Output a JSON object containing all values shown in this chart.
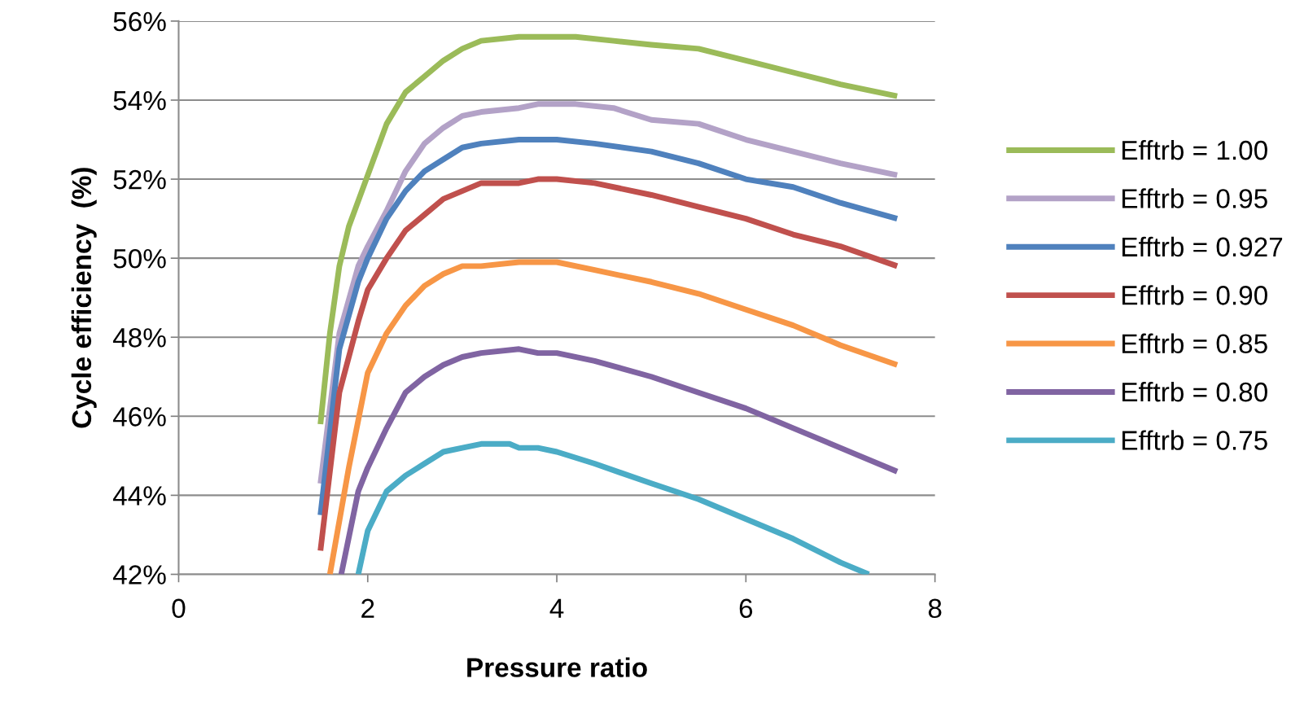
{
  "chart_data": {
    "type": "line",
    "xlabel": "Pressure ratio",
    "ylabel": "Cycle efficiency  (%)",
    "xlim": [
      0,
      8
    ],
    "xticks": [
      0,
      2,
      4,
      6,
      8
    ],
    "ylim": [
      42,
      56
    ],
    "yticks": [
      {
        "value": 42,
        "label": "42%"
      },
      {
        "value": 44,
        "label": "44%"
      },
      {
        "value": 46,
        "label": "46%"
      },
      {
        "value": 48,
        "label": "48%"
      },
      {
        "value": 50,
        "label": "50%"
      },
      {
        "value": 52,
        "label": "52%"
      },
      {
        "value": 54,
        "label": "54%"
      },
      {
        "value": 56,
        "label": "56%"
      }
    ],
    "grid": "y",
    "legend": "right",
    "marker": "none",
    "line_style": "solid",
    "series": [
      {
        "name": "Efftrb = 1.00",
        "color": "#9bbb59",
        "x": [
          1.5,
          1.6,
          1.7,
          1.8,
          2.0,
          2.2,
          2.4,
          2.6,
          2.8,
          3.0,
          3.2,
          3.6,
          3.8,
          4.2,
          4.6,
          5.0,
          5.5,
          6.0,
          6.5,
          7.0,
          7.6
        ],
        "values": [
          45.8,
          48.1,
          49.8,
          50.8,
          52.1,
          53.4,
          54.2,
          54.6,
          55.0,
          55.3,
          55.5,
          55.6,
          55.6,
          55.6,
          55.5,
          55.4,
          55.3,
          55.0,
          54.7,
          54.4,
          54.1
        ]
      },
      {
        "name": "Efftrb = 0.95",
        "color": "#b3a2c7",
        "x": [
          1.5,
          1.7,
          1.9,
          2.0,
          2.2,
          2.4,
          2.6,
          2.8,
          3.0,
          3.2,
          3.6,
          3.8,
          4.2,
          4.6,
          5.0,
          5.5,
          6.0,
          6.5,
          7.0,
          7.6
        ],
        "values": [
          44.3,
          48.1,
          49.8,
          50.3,
          51.2,
          52.2,
          52.9,
          53.3,
          53.6,
          53.7,
          53.8,
          53.9,
          53.9,
          53.8,
          53.5,
          53.4,
          53.0,
          52.7,
          52.4,
          52.1
        ]
      },
      {
        "name": "Efftrb = 0.927",
        "color": "#4f81bd",
        "x": [
          1.5,
          1.7,
          1.9,
          2.0,
          2.2,
          2.4,
          2.6,
          2.8,
          3.0,
          3.2,
          3.6,
          4.0,
          4.4,
          5.0,
          5.5,
          6.0,
          6.5,
          7.0,
          7.6
        ],
        "values": [
          43.5,
          47.7,
          49.4,
          50.0,
          51.0,
          51.7,
          52.2,
          52.5,
          52.8,
          52.9,
          53.0,
          53.0,
          52.9,
          52.7,
          52.4,
          52.0,
          51.8,
          51.4,
          51.0
        ]
      },
      {
        "name": "Efftrb = 0.90",
        "color": "#c0504d",
        "x": [
          1.5,
          1.7,
          1.9,
          2.0,
          2.2,
          2.4,
          2.6,
          2.8,
          3.0,
          3.2,
          3.6,
          3.8,
          4.0,
          4.4,
          5.0,
          5.5,
          6.0,
          6.5,
          7.0,
          7.6
        ],
        "values": [
          42.6,
          46.6,
          48.4,
          49.2,
          50.0,
          50.7,
          51.1,
          51.5,
          51.7,
          51.9,
          51.9,
          52.0,
          52.0,
          51.9,
          51.6,
          51.3,
          51.0,
          50.6,
          50.3,
          49.8
        ]
      },
      {
        "name": "Efftrb = 0.85",
        "color": "#f79646",
        "x": [
          1.6,
          1.8,
          2.0,
          2.2,
          2.4,
          2.6,
          2.8,
          3.0,
          3.2,
          3.6,
          4.0,
          4.4,
          5.0,
          5.5,
          6.0,
          6.5,
          7.0,
          7.6
        ],
        "values": [
          42.0,
          44.7,
          47.1,
          48.1,
          48.8,
          49.3,
          49.6,
          49.8,
          49.8,
          49.9,
          49.9,
          49.7,
          49.4,
          49.1,
          48.7,
          48.3,
          47.8,
          47.3
        ]
      },
      {
        "name": "Efftrb = 0.80",
        "color": "#8064a2",
        "x": [
          1.72,
          1.9,
          2.0,
          2.2,
          2.4,
          2.6,
          2.8,
          3.0,
          3.2,
          3.6,
          3.8,
          4.0,
          4.4,
          5.0,
          5.5,
          6.0,
          6.5,
          7.0,
          7.6
        ],
        "values": [
          42.0,
          44.1,
          44.7,
          45.7,
          46.6,
          47.0,
          47.3,
          47.5,
          47.6,
          47.7,
          47.6,
          47.6,
          47.4,
          47.0,
          46.6,
          46.2,
          45.7,
          45.2,
          44.6
        ]
      },
      {
        "name": "Efftrb = 0.75",
        "color": "#4bacc6",
        "x": [
          1.9,
          2.0,
          2.2,
          2.4,
          2.6,
          2.8,
          3.0,
          3.2,
          3.5,
          3.6,
          3.8,
          4.0,
          4.4,
          5.0,
          5.5,
          6.0,
          6.5,
          7.0,
          7.3
        ],
        "values": [
          42.0,
          43.1,
          44.1,
          44.5,
          44.8,
          45.1,
          45.2,
          45.3,
          45.3,
          45.2,
          45.2,
          45.1,
          44.8,
          44.3,
          43.9,
          43.4,
          42.9,
          42.3,
          42.0
        ]
      }
    ]
  }
}
